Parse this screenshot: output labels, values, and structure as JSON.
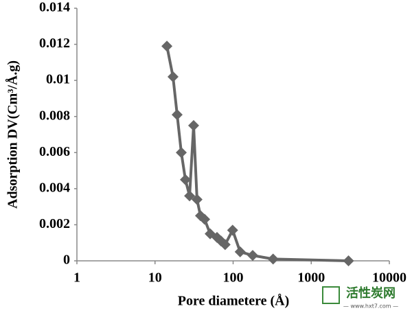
{
  "chart_data": {
    "type": "line",
    "xlabel": "Pore diametere (Å)",
    "ylabel": "Adsorption DV(Cm³/Å.g)",
    "x": [
      14.2,
      17,
      19.2,
      21.7,
      24.5,
      27.7,
      31.2,
      34.5,
      38.2,
      43.2,
      50.8,
      62.2,
      70,
      79,
      98.5,
      123,
      178,
      325,
      3000
    ],
    "series": [
      {
        "name": "Adsorption DV",
        "color": "#666666",
        "values": [
          0.0119,
          0.0102,
          0.0081,
          0.006,
          0.0045,
          0.0036,
          0.0075,
          0.0034,
          0.0025,
          0.0023,
          0.0015,
          0.0013,
          0.0011,
          0.0009,
          0.0017,
          0.0005,
          0.0003,
          0.0001,
          0
        ]
      }
    ],
    "xscale": "log",
    "xlim": [
      1,
      10000
    ],
    "xticks": [
      1,
      10,
      100,
      1000,
      10000
    ],
    "ylim": [
      0,
      0.014
    ],
    "yticks": [
      0,
      0.002,
      0.004,
      0.006,
      0.008,
      0.01,
      0.012,
      0.014
    ],
    "grid": false,
    "annotations": [
      "活性炭网",
      "— www.hxt7.com —"
    ]
  }
}
